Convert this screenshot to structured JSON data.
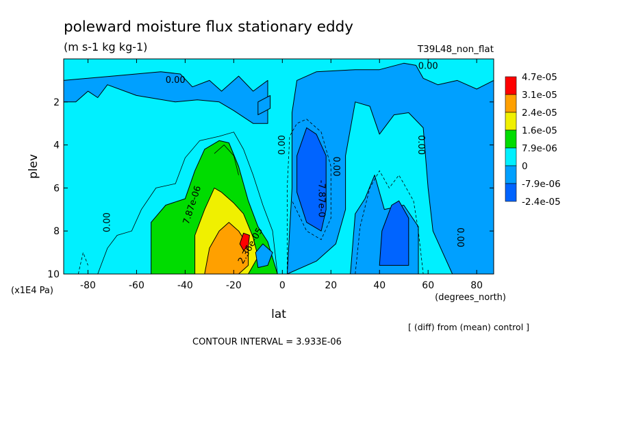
{
  "title": "poleward moisture flux stationary eddy",
  "units": "(m s-1 kg kg-1)",
  "run_label": "T39L48_non_flat",
  "note": "[ (diff) from (mean) control ]",
  "contour_interval": "CONTOUR INTERVAL = 3.933E-06",
  "chart_data": {
    "type": "heatmap",
    "title": "poleward moisture flux stationary eddy",
    "xlabel": "lat",
    "xunit": "(degrees_north)",
    "ylabel": "plev",
    "yunit": "(x1E4 Pa)",
    "xlim": [
      -90,
      87
    ],
    "ylim": [
      0,
      10
    ],
    "y_reversed": true,
    "grid": false,
    "legend_position": "right",
    "x_ticks": [
      -80,
      -60,
      -40,
      -20,
      0,
      20,
      40,
      60,
      80
    ],
    "y_ticks": [
      2,
      4,
      6,
      8,
      10
    ],
    "x_tick_labels": [
      "-80",
      "-60",
      "-40",
      "-20",
      "0",
      "20",
      "40",
      "60",
      "80"
    ],
    "y_tick_labels": [
      "2",
      "4",
      "6",
      "8",
      "10"
    ],
    "colorbar": {
      "labels": [
        "4.7e-05",
        "3.1e-05",
        "2.4e-05",
        "1.6e-05",
        "7.9e-06",
        "0",
        "-7.9e-06",
        "-2.4e-05"
      ],
      "colors": [
        "#ff0000",
        "#ffa000",
        "#f0f000",
        "#00dc00",
        "#00f0ff",
        "#00a0ff",
        "#0064ff"
      ]
    },
    "contour_labels": [
      {
        "text": "0.00",
        "lat": -44,
        "plev": 1.0,
        "rotate": 0
      },
      {
        "text": "0.00",
        "lat": 60,
        "plev": 0.35,
        "rotate": 0
      },
      {
        "text": "0.00",
        "lat": -72,
        "plev": 7.6,
        "rotate": -90
      },
      {
        "text": "0.00",
        "lat": 0,
        "plev": 4.0,
        "rotate": -90
      },
      {
        "text": "0.00",
        "lat": 22,
        "plev": 5.0,
        "rotate": 90
      },
      {
        "text": "0.00",
        "lat": 57,
        "plev": 4.0,
        "rotate": 90
      },
      {
        "text": "0.00",
        "lat": 73,
        "plev": 8.3,
        "rotate": 90
      },
      {
        "text": "7.87e-06",
        "lat": -37,
        "plev": 6.8,
        "rotate": -72
      },
      {
        "text": "-7.87e-0",
        "lat": 16,
        "plev": 6.5,
        "rotate": 90
      },
      {
        "text": "2.36e-05",
        "lat": -13,
        "plev": 8.7,
        "rotate": -60
      }
    ],
    "regions": [
      {
        "level": "0_to_7.9e-06",
        "color": "#00f0ff",
        "outline": [
          [
            -90,
            0
          ],
          [
            87,
            0
          ],
          [
            87,
            10
          ],
          [
            -90,
            10
          ]
        ]
      },
      {
        "level": "-7.9e-06_to_0",
        "color": "#00a0ff",
        "outline": [
          [
            -90,
            1.0
          ],
          [
            -70,
            0.8
          ],
          [
            -50,
            0.6
          ],
          [
            -42,
            0.7
          ],
          [
            -37,
            1.3
          ],
          [
            -30,
            1.0
          ],
          [
            -25,
            1.5
          ],
          [
            -18,
            0.8
          ],
          [
            -12,
            1.5
          ],
          [
            -6,
            1.0
          ],
          [
            -6,
            3.0
          ],
          [
            -12,
            3.0
          ],
          [
            -20,
            2.4
          ],
          [
            -26,
            2.0
          ],
          [
            -35,
            1.9
          ],
          [
            -44,
            2.0
          ],
          [
            -60,
            1.7
          ],
          [
            -72,
            1.2
          ],
          [
            -76,
            1.8
          ],
          [
            -80,
            1.5
          ],
          [
            -85,
            2.0
          ],
          [
            -90,
            2.0
          ]
        ]
      },
      {
        "level": "-7.9e-06_to_0",
        "color": "#00a0ff",
        "outline": [
          [
            -10,
            2.0
          ],
          [
            -5,
            1.7
          ],
          [
            -5,
            2.3
          ],
          [
            -10,
            2.6
          ]
        ]
      },
      {
        "level": "-7.9e-06_to_0",
        "color": "#00a0ff",
        "outline": [
          [
            2,
            10
          ],
          [
            4,
            6
          ],
          [
            4,
            2.5
          ],
          [
            6,
            1.0
          ],
          [
            14,
            0.6
          ],
          [
            30,
            0.5
          ],
          [
            40,
            0.5
          ],
          [
            50,
            0.2
          ],
          [
            55,
            0.3
          ],
          [
            58,
            0.9
          ],
          [
            64,
            1.2
          ],
          [
            72,
            1.0
          ],
          [
            80,
            1.4
          ],
          [
            87,
            1.0
          ],
          [
            87,
            10
          ],
          [
            70,
            10
          ],
          [
            62,
            8
          ],
          [
            60,
            6
          ],
          [
            58,
            3.2
          ],
          [
            52,
            2.5
          ],
          [
            46,
            2.6
          ],
          [
            40,
            3.5
          ],
          [
            36,
            2.2
          ],
          [
            30,
            2.0
          ],
          [
            26,
            4.5
          ],
          [
            26,
            7.0
          ],
          [
            22,
            8.6
          ],
          [
            14,
            9.4
          ]
        ]
      },
      {
        "level": "-7.9e-06_to_0",
        "color": "#00a0ff",
        "outline": [
          [
            28,
            10
          ],
          [
            30,
            7.2
          ],
          [
            34,
            6.5
          ],
          [
            38,
            5.4
          ],
          [
            42,
            7.0
          ],
          [
            50,
            6.8
          ],
          [
            56,
            7.8
          ],
          [
            56,
            10
          ]
        ]
      },
      {
        "level": "-2.4e-05_to_-7.9e-06",
        "color": "#0064ff",
        "outline": [
          [
            6,
            4.5
          ],
          [
            10,
            3.2
          ],
          [
            14,
            3.5
          ],
          [
            18,
            4.5
          ],
          [
            18,
            7.0
          ],
          [
            16,
            8.0
          ],
          [
            10,
            7.6
          ],
          [
            6,
            6.2
          ]
        ]
      },
      {
        "level": "-2.4e-05_to_-7.9e-06",
        "color": "#0064ff",
        "outline": [
          [
            40,
            9.6
          ],
          [
            41,
            8.0
          ],
          [
            45,
            6.8
          ],
          [
            48,
            6.6
          ],
          [
            52,
            7.4
          ],
          [
            52,
            9.6
          ]
        ]
      },
      {
        "level": "7.9e-06_to_1.6e-05",
        "color": "#00dc00",
        "outline": [
          [
            -54,
            10
          ],
          [
            -54,
            7.6
          ],
          [
            -48,
            6.8
          ],
          [
            -40,
            6.5
          ],
          [
            -36,
            5.2
          ],
          [
            -32,
            4.2
          ],
          [
            -26,
            3.8
          ],
          [
            -22,
            3.9
          ],
          [
            -18,
            5.0
          ],
          [
            -14,
            6.6
          ],
          [
            -10,
            7.8
          ],
          [
            -6,
            8.5
          ],
          [
            -2,
            10
          ]
        ]
      },
      {
        "level": "1.6e-05_to_2.4e-05",
        "color": "#f0f000",
        "outline": [
          [
            -36,
            10
          ],
          [
            -36,
            8.2
          ],
          [
            -32,
            7.0
          ],
          [
            -28,
            6.0
          ],
          [
            -25,
            6.2
          ],
          [
            -20,
            6.7
          ],
          [
            -16,
            7.2
          ],
          [
            -12,
            8.3
          ],
          [
            -10,
            9.2
          ],
          [
            -14,
            10
          ]
        ]
      },
      {
        "level": "2.4e-05_to_3.1e-05",
        "color": "#ffa000",
        "outline": [
          [
            -32,
            10
          ],
          [
            -30,
            8.8
          ],
          [
            -26,
            8.0
          ],
          [
            -22,
            7.6
          ],
          [
            -18,
            8.0
          ],
          [
            -14,
            8.7
          ],
          [
            -14,
            9.6
          ],
          [
            -18,
            10
          ]
        ]
      },
      {
        "level": "3.1e-05_to_4.7e-05",
        "color": "#ff0000",
        "outline": [
          [
            -17.5,
            8.6
          ],
          [
            -16,
            8.1
          ],
          [
            -13.5,
            8.2
          ],
          [
            -14,
            8.7
          ],
          [
            -16,
            8.9
          ]
        ]
      },
      {
        "level": "-7.9e-06_to_0",
        "color": "#00a0ff",
        "outline": [
          [
            -11,
            9.0
          ],
          [
            -8,
            8.6
          ],
          [
            -4,
            9.0
          ],
          [
            -6,
            9.6
          ],
          [
            -10,
            9.7
          ]
        ]
      }
    ],
    "contours": [
      {
        "style": "solid",
        "points": [
          [
            -76,
            10
          ],
          [
            -72,
            8.8
          ],
          [
            -68,
            8.2
          ],
          [
            -62,
            8.0
          ],
          [
            -58,
            7.0
          ],
          [
            -52,
            6.0
          ],
          [
            -44,
            5.8
          ],
          [
            -40,
            4.6
          ],
          [
            -34,
            3.8
          ],
          [
            -26,
            3.6
          ],
          [
            -20,
            3.4
          ],
          [
            -16,
            4.2
          ],
          [
            -12,
            5.4
          ],
          [
            -8,
            6.8
          ],
          [
            -4,
            8.0
          ],
          [
            -2,
            10
          ]
        ]
      },
      {
        "style": "solid",
        "points": [
          [
            -28,
            4.4
          ],
          [
            -24,
            4.0
          ],
          [
            -20,
            4.5
          ],
          [
            -18,
            5.4
          ]
        ]
      },
      {
        "style": "dashed",
        "points": [
          [
            2,
            10
          ],
          [
            2,
            6
          ],
          [
            3,
            3.6
          ],
          [
            6,
            3.0
          ],
          [
            10,
            2.8
          ],
          [
            16,
            3.4
          ],
          [
            20,
            5.0
          ],
          [
            20,
            7.4
          ],
          [
            16,
            8.4
          ],
          [
            10,
            8.0
          ],
          [
            4,
            6.6
          ]
        ]
      },
      {
        "style": "dashed",
        "points": [
          [
            30,
            10
          ],
          [
            32,
            7.8
          ],
          [
            36,
            6.0
          ],
          [
            40,
            5.2
          ],
          [
            44,
            6.0
          ],
          [
            48,
            5.4
          ],
          [
            54,
            6.6
          ],
          [
            56,
            8.0
          ],
          [
            58,
            10
          ]
        ]
      },
      {
        "style": "dashed",
        "points": [
          [
            -84,
            10
          ],
          [
            -82,
            9.0
          ],
          [
            -80,
            9.6
          ]
        ]
      }
    ]
  }
}
